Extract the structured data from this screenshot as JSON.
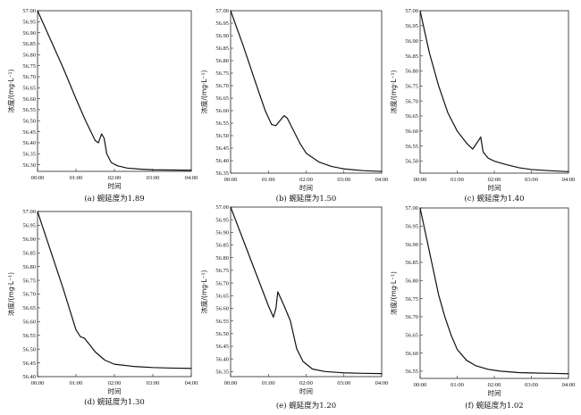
{
  "chart_data": [
    {
      "type": "line",
      "caption": "(a) 蜿延度为1.89",
      "xlabel": "时间",
      "ylabel": "浓度/(mg·L⁻¹)",
      "x_ticks": [
        "00:00",
        "01:00",
        "02:00",
        "03:00",
        "04:00"
      ],
      "ylim": [
        56.27,
        57.0
      ],
      "y_ticks": [
        "56.30",
        "56.35",
        "56.40",
        "56.45",
        "56.50",
        "56.55",
        "56.60",
        "56.65",
        "56.70",
        "56.75",
        "56.80",
        "56.85",
        "56.90",
        "56.95",
        "57.00"
      ],
      "series": [
        {
          "x": [
            "00:00",
            "00:20",
            "00:40",
            "01:00",
            "01:15",
            "01:30",
            "01:35",
            "01:40",
            "01:44",
            "01:48",
            "01:55",
            "02:05",
            "02:20",
            "02:40",
            "03:00",
            "03:30",
            "04:00"
          ],
          "y": [
            57.0,
            56.87,
            56.74,
            56.6,
            56.5,
            56.41,
            56.4,
            56.44,
            56.42,
            56.35,
            56.31,
            56.295,
            56.285,
            56.28,
            56.277,
            56.276,
            56.275
          ]
        }
      ]
    },
    {
      "type": "line",
      "caption": "(b) 蜿延度为1.50",
      "xlabel": "时间",
      "ylabel": "浓度/(mg·L⁻¹)",
      "x_ticks": [
        "00:00",
        "01:00",
        "02:00",
        "03:00",
        "04:00"
      ],
      "ylim": [
        56.35,
        57.0
      ],
      "y_ticks": [
        "56.35",
        "56.40",
        "56.45",
        "56.50",
        "56.55",
        "56.60",
        "56.65",
        "56.70",
        "56.75",
        "56.80",
        "56.85",
        "56.90",
        "56.95",
        "57.00"
      ],
      "series": [
        {
          "x": [
            "00:00",
            "00:20",
            "00:40",
            "00:55",
            "01:05",
            "01:12",
            "01:20",
            "01:25",
            "01:30",
            "01:40",
            "01:50",
            "02:00",
            "02:20",
            "02:40",
            "03:00",
            "03:30",
            "04:00"
          ],
          "y": [
            57.0,
            56.86,
            56.71,
            56.6,
            56.545,
            56.54,
            56.565,
            56.58,
            56.57,
            56.52,
            56.47,
            56.43,
            56.395,
            56.377,
            56.367,
            56.36,
            56.357
          ]
        }
      ]
    },
    {
      "type": "line",
      "caption": "(c) 蜿延度为1.40",
      "xlabel": "时间",
      "ylabel": "浓度/(mg·L⁻¹)",
      "x_ticks": [
        "00:00",
        "01:00",
        "02:00",
        "03:00",
        "04:00"
      ],
      "ylim": [
        56.46,
        57.0
      ],
      "y_ticks": [
        "56.50",
        "56.55",
        "56.60",
        "56.65",
        "56.70",
        "56.75",
        "56.80",
        "56.85",
        "56.90",
        "56.95",
        "57.00"
      ],
      "series": [
        {
          "x": [
            "00:00",
            "00:15",
            "00:30",
            "00:45",
            "01:00",
            "01:15",
            "01:25",
            "01:30",
            "01:35",
            "01:38",
            "01:42",
            "01:50",
            "02:00",
            "02:20",
            "02:40",
            "03:00",
            "03:30",
            "04:00"
          ],
          "y": [
            57.0,
            56.86,
            56.75,
            56.66,
            56.6,
            56.56,
            56.54,
            56.555,
            56.57,
            56.58,
            56.53,
            56.51,
            56.5,
            56.488,
            56.478,
            56.472,
            56.468,
            56.465
          ]
        }
      ]
    },
    {
      "type": "line",
      "caption": "(d) 蜿延度为1.30",
      "xlabel": "时间",
      "ylabel": "浓度/(mg·L⁻¹)",
      "x_ticks": [
        "00:00",
        "01:00",
        "02:00",
        "03:00",
        "04:00"
      ],
      "ylim": [
        56.4,
        57.0
      ],
      "y_ticks": [
        "56.40",
        "56.45",
        "56.50",
        "56.55",
        "56.60",
        "56.65",
        "56.70",
        "56.75",
        "56.80",
        "56.85",
        "56.90",
        "56.95",
        "57.00"
      ],
      "series": [
        {
          "x": [
            "00:00",
            "00:20",
            "00:40",
            "01:00",
            "01:07",
            "01:13",
            "01:20",
            "01:30",
            "01:45",
            "02:00",
            "02:30",
            "03:00",
            "03:30",
            "04:00"
          ],
          "y": [
            57.0,
            56.86,
            56.72,
            56.57,
            56.545,
            56.54,
            56.52,
            56.49,
            56.46,
            56.445,
            56.437,
            56.433,
            56.431,
            56.43
          ]
        }
      ]
    },
    {
      "type": "line",
      "caption": "(e) 蜿延度为1.20",
      "xlabel": "时间",
      "ylabel": "浓度/(mg·L⁻¹)",
      "x_ticks": [
        "00:00",
        "01:00",
        "02:00",
        "03:00",
        "04:00"
      ],
      "ylim": [
        56.33,
        57.0
      ],
      "y_ticks": [
        "56.35",
        "56.40",
        "56.45",
        "56.50",
        "56.55",
        "56.60",
        "56.65",
        "56.70",
        "56.75",
        "56.80",
        "56.85",
        "56.90",
        "56.95",
        "57.00"
      ],
      "series": [
        {
          "x": [
            "00:00",
            "00:20",
            "00:40",
            "01:00",
            "01:08",
            "01:12",
            "01:15",
            "01:25",
            "01:35",
            "01:45",
            "01:55",
            "02:10",
            "02:30",
            "03:00",
            "03:30",
            "04:00"
          ],
          "y": [
            57.0,
            56.87,
            56.74,
            56.61,
            56.565,
            56.6,
            56.665,
            56.61,
            56.55,
            56.44,
            56.39,
            56.36,
            56.35,
            56.345,
            56.343,
            56.342
          ]
        }
      ]
    },
    {
      "type": "line",
      "caption": "(f) 蜿延度为1.02",
      "xlabel": "时间",
      "ylabel": "浓度/(mg·L⁻¹)",
      "x_ticks": [
        "00:00",
        "01:00",
        "02:00",
        "03:00",
        "04:00"
      ],
      "ylim": [
        56.53,
        57.0
      ],
      "y_ticks": [
        "56.55",
        "56.60",
        "56.65",
        "56.70",
        "56.75",
        "56.80",
        "56.85",
        "56.90",
        "56.95",
        "57.00"
      ],
      "series": [
        {
          "x": [
            "00:00",
            "00:10",
            "00:20",
            "00:30",
            "00:40",
            "00:50",
            "01:00",
            "01:15",
            "01:30",
            "01:50",
            "02:10",
            "02:40",
            "03:00",
            "03:30",
            "04:00"
          ],
          "y": [
            57.0,
            56.92,
            56.84,
            56.76,
            56.7,
            56.65,
            56.61,
            56.58,
            56.565,
            56.555,
            56.55,
            56.546,
            56.545,
            56.544,
            56.543
          ]
        }
      ]
    }
  ]
}
